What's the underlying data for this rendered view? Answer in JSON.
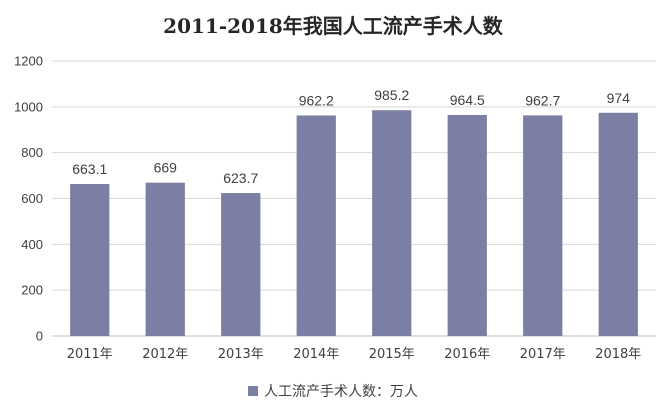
{
  "chart_data": {
    "type": "bar",
    "title": "2011-2018年我国人工流产手术人数",
    "categories": [
      "2011年",
      "2012年",
      "2013年",
      "2014年",
      "2015年",
      "2016年",
      "2017年",
      "2018年"
    ],
    "series": [
      {
        "name": "人工流产手术人数：万人",
        "values": [
          663.1,
          669,
          623.7,
          962.2,
          985.2,
          964.5,
          962.7,
          974
        ]
      }
    ],
    "data_labels": [
      "663.1",
      "669",
      "623.7",
      "962.2",
      "985.2",
      "964.5",
      "962.7",
      "974"
    ],
    "y_ticks": [
      "0",
      "200",
      "400",
      "600",
      "800",
      "1000",
      "1200"
    ],
    "ylim": [
      0,
      1200
    ],
    "grid": true,
    "legend_position": "bottom",
    "colors": {
      "bar": "#7a7fa3",
      "grid": "#d9d9d9",
      "axis": "#bfbfbf"
    }
  }
}
